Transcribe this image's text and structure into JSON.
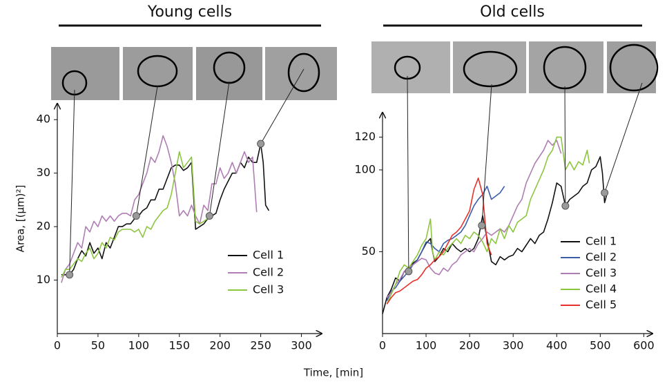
{
  "chart_data": [
    {
      "type": "line",
      "title": "Young cells",
      "ylabel": "Area,  [(µm)²]",
      "xlabel": "Time,  [min]",
      "xlim": [
        0,
        325
      ],
      "ylim": [
        0,
        43
      ],
      "xticks": [
        0,
        50,
        100,
        150,
        200,
        250,
        300
      ],
      "yticks": [
        10,
        20,
        30,
        40
      ],
      "legend": "lower right",
      "series": [
        {
          "name": "Cell 1",
          "color": "#111111",
          "x": [
            5,
            10,
            15,
            20,
            25,
            30,
            35,
            40,
            45,
            50,
            55,
            60,
            65,
            70,
            75,
            80,
            85,
            90,
            95,
            100,
            105,
            110,
            115,
            120,
            125,
            130,
            135,
            140,
            145,
            150,
            155,
            160,
            165,
            170,
            175,
            180,
            185,
            190,
            195,
            200,
            205,
            210,
            215,
            220,
            225,
            230,
            235,
            240,
            245,
            250,
            253,
            256,
            260
          ],
          "values": [
            11,
            11,
            11,
            12,
            14,
            15.5,
            14.5,
            17,
            15,
            16,
            14,
            17,
            16,
            18,
            20,
            20,
            20.5,
            20.5,
            21.5,
            22,
            23,
            23.5,
            25,
            25,
            27,
            27,
            29,
            31,
            31.5,
            31.5,
            30.5,
            31,
            32,
            19.5,
            20,
            20.5,
            21.5,
            22,
            22.5,
            25,
            27,
            28.5,
            30,
            30,
            32,
            31,
            33,
            32,
            32,
            35.5,
            32,
            24,
            23
          ]
        },
        {
          "name": "Cell 2",
          "color": "#b07cb4",
          "x": [
            5,
            10,
            15,
            20,
            25,
            30,
            35,
            40,
            45,
            50,
            55,
            60,
            65,
            70,
            75,
            80,
            85,
            90,
            95,
            100,
            105,
            110,
            115,
            120,
            125,
            130,
            135,
            140,
            145,
            150,
            155,
            160,
            165,
            170,
            175,
            180,
            185,
            190,
            195,
            200,
            205,
            210,
            215,
            220,
            225,
            230,
            235,
            240,
            245
          ],
          "values": [
            9.5,
            12,
            13,
            15,
            17,
            16,
            20,
            19,
            21,
            20,
            22,
            21,
            22,
            21,
            22,
            22.5,
            22.5,
            22,
            25,
            26,
            28,
            30,
            33,
            32,
            34,
            37,
            35,
            32,
            28,
            22,
            23,
            22,
            24,
            22,
            20.5,
            24,
            23,
            28,
            28,
            31,
            29,
            30,
            32,
            30,
            32,
            34,
            32,
            33,
            22.7
          ]
        },
        {
          "name": "Cell 3",
          "color": "#8cc63f",
          "x": [
            5,
            10,
            15,
            20,
            25,
            30,
            35,
            40,
            45,
            50,
            55,
            60,
            65,
            70,
            75,
            80,
            85,
            90,
            95,
            100,
            105,
            110,
            115,
            120,
            125,
            130,
            135,
            140,
            145,
            150,
            155,
            160,
            165,
            170,
            175,
            180,
            185,
            190
          ],
          "values": [
            10.5,
            12,
            12,
            13,
            14,
            13.5,
            15,
            16,
            14,
            15,
            17,
            16,
            18,
            17.5,
            19,
            19.5,
            19.5,
            19.5,
            19,
            19.5,
            18,
            20,
            19.5,
            21,
            22,
            23,
            23.5,
            26,
            30,
            34,
            31,
            32,
            33,
            21,
            20.5,
            21,
            21.5,
            22
          ]
        }
      ],
      "highlight_points": [
        {
          "x": 15,
          "y": 11
        },
        {
          "x": 97,
          "y": 22
        },
        {
          "x": 187,
          "y": 22
        },
        {
          "x": 250,
          "y": 35.5
        }
      ]
    },
    {
      "type": "line",
      "title": "Old cells",
      "xlim": [
        0,
        620
      ],
      "ylim": [
        0,
        135
      ],
      "xticks": [
        0,
        100,
        200,
        300,
        400,
        500,
        600
      ],
      "yticks": [
        50,
        100,
        120
      ],
      "legend": "lower right",
      "series": [
        {
          "name": "Cell 1",
          "color": "#111111",
          "x": [
            0,
            10,
            20,
            30,
            40,
            50,
            60,
            70,
            80,
            90,
            100,
            110,
            115,
            120,
            130,
            140,
            150,
            160,
            170,
            180,
            190,
            200,
            210,
            220,
            230,
            240,
            250,
            260,
            270,
            280,
            290,
            300,
            310,
            320,
            330,
            340,
            350,
            360,
            370,
            380,
            390,
            400,
            410,
            420,
            430,
            440,
            450,
            460,
            470,
            480,
            490,
            500,
            505,
            510,
            515
          ],
          "values": [
            12,
            22,
            27,
            34,
            32,
            38,
            38,
            43,
            45,
            50,
            55,
            58,
            50,
            44,
            47,
            52,
            50,
            55,
            52,
            50,
            52,
            50,
            52,
            58,
            72,
            58,
            44,
            42,
            47,
            45,
            47,
            48,
            52,
            50,
            54,
            58,
            55,
            60,
            62,
            70,
            80,
            92,
            90,
            78,
            82,
            84,
            86,
            90,
            92,
            100,
            102,
            108,
            98,
            80,
            85
          ]
        },
        {
          "name": "Cell 2",
          "color": "#3b5ba9",
          "x": [
            10,
            20,
            30,
            40,
            50,
            60,
            70,
            80,
            90,
            100,
            110,
            120,
            130,
            140,
            150,
            160,
            170,
            180,
            190,
            200,
            210,
            220,
            230,
            240,
            250,
            260,
            270,
            280
          ],
          "values": [
            20,
            26,
            28,
            32,
            35,
            38,
            42,
            45,
            50,
            56,
            55,
            52,
            50,
            55,
            57,
            58,
            60,
            62,
            66,
            72,
            78,
            82,
            85,
            90,
            82,
            84,
            86,
            90
          ]
        },
        {
          "name": "Cell 3",
          "color": "#b07cb4",
          "x": [
            10,
            20,
            30,
            40,
            50,
            60,
            70,
            80,
            90,
            100,
            110,
            120,
            130,
            140,
            150,
            160,
            170,
            180,
            190,
            200,
            210,
            220,
            230,
            240,
            250,
            260,
            270,
            280,
            290,
            300,
            310,
            320,
            330,
            340,
            350,
            360,
            370,
            380,
            390,
            400,
            410
          ],
          "values": [
            22,
            25,
            30,
            33,
            38,
            40,
            42,
            44,
            46,
            45,
            40,
            37,
            36,
            40,
            38,
            42,
            44,
            48,
            50,
            52,
            50,
            55,
            58,
            62,
            60,
            62,
            64,
            62,
            66,
            72,
            78,
            82,
            92,
            98,
            104,
            108,
            112,
            118,
            115,
            118,
            110
          ]
        },
        {
          "name": "Cell 4",
          "color": "#8cc63f",
          "x": [
            10,
            20,
            30,
            40,
            50,
            60,
            70,
            80,
            90,
            100,
            110,
            115,
            120,
            130,
            140,
            150,
            160,
            170,
            180,
            190,
            200,
            210,
            220,
            230,
            240,
            250,
            260,
            270,
            280,
            290,
            300,
            310,
            320,
            330,
            340,
            350,
            360,
            370,
            380,
            390,
            400,
            410,
            420,
            430,
            440,
            450,
            460,
            470,
            475
          ],
          "values": [
            18,
            24,
            30,
            38,
            42,
            40,
            44,
            48,
            54,
            58,
            70,
            50,
            45,
            50,
            48,
            52,
            55,
            58,
            55,
            60,
            58,
            62,
            60,
            56,
            50,
            58,
            55,
            64,
            58,
            66,
            62,
            68,
            70,
            72,
            82,
            88,
            94,
            100,
            108,
            112,
            120,
            120,
            100,
            105,
            100,
            105,
            103,
            112,
            104
          ]
        },
        {
          "name": "Cell 5",
          "color": "#e8302a",
          "x": [
            10,
            20,
            30,
            40,
            50,
            60,
            70,
            80,
            90,
            100,
            110,
            120,
            130,
            140,
            150,
            160,
            170,
            180,
            190,
            200,
            210,
            220,
            230,
            240,
            250
          ],
          "values": [
            18,
            22,
            25,
            26,
            28,
            30,
            32,
            33,
            36,
            40,
            42,
            45,
            47,
            50,
            55,
            60,
            62,
            65,
            70,
            75,
            88,
            95,
            85,
            55,
            48
          ]
        }
      ],
      "highlight_points": [
        {
          "x": 60,
          "y": 38
        },
        {
          "x": 228,
          "y": 66
        },
        {
          "x": 420,
          "y": 78
        },
        {
          "x": 510,
          "y": 86
        }
      ]
    }
  ]
}
